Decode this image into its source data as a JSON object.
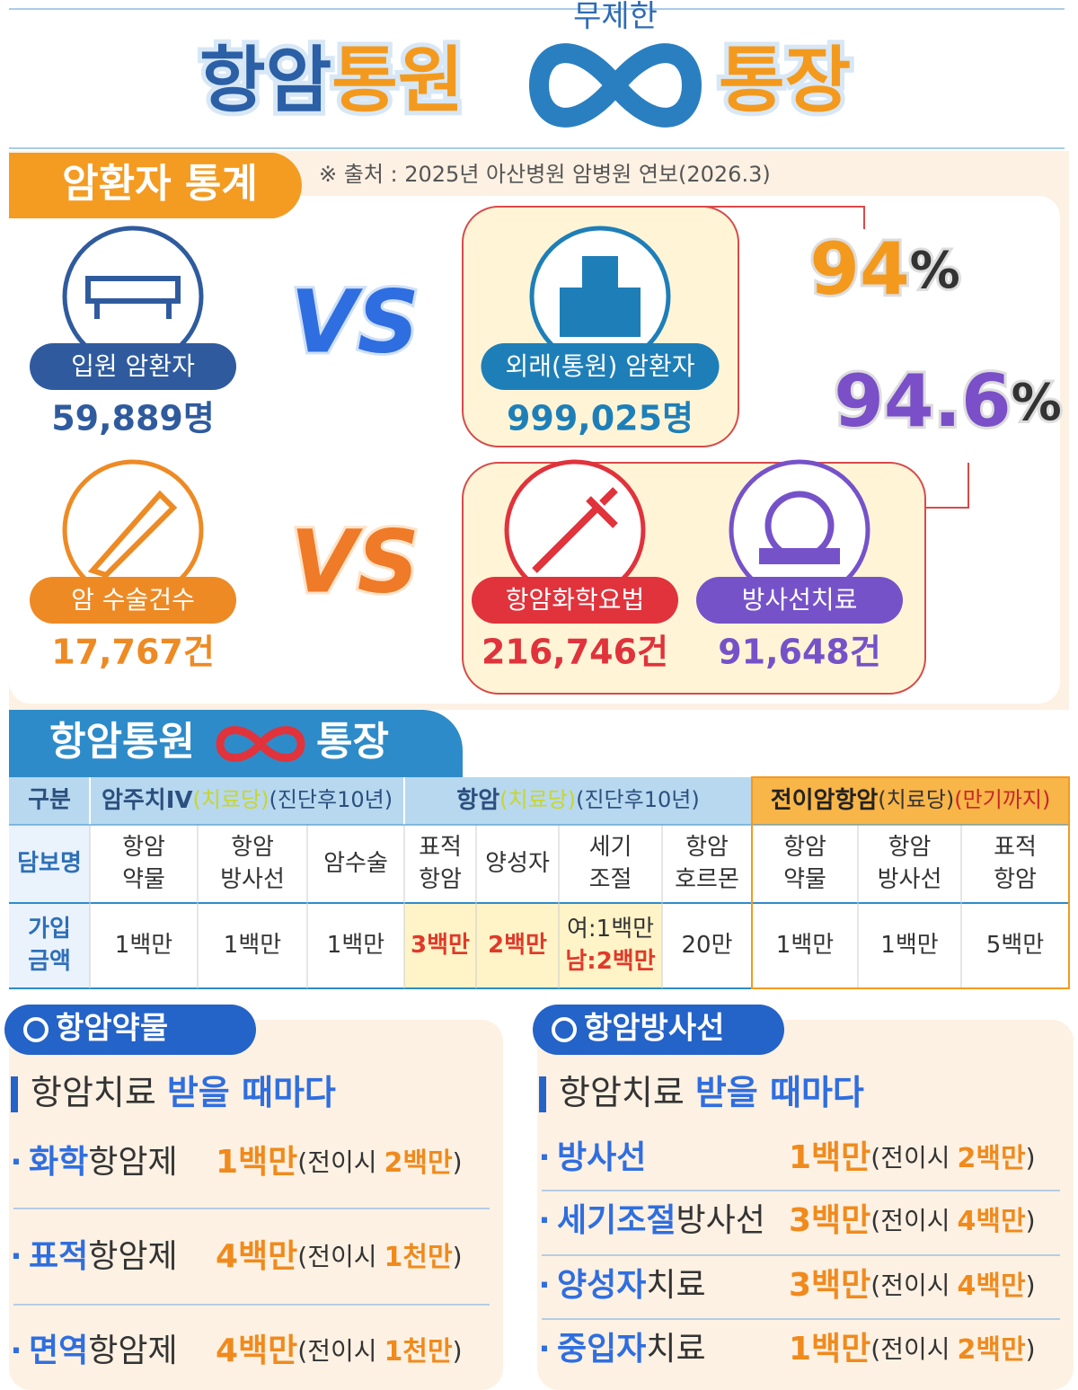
{
  "header": {
    "subtitle": "무제한",
    "title": {
      "part1": "항암",
      "part2": "통원",
      "part3": "통장"
    }
  },
  "stats": {
    "label": "암환자 통계",
    "source": "※ 출처 : 2025년 아산병원 암병원 연보(2026.3)",
    "vs": [
      "VS",
      "VS"
    ],
    "inpatient": {
      "label": "입원 암환자",
      "value": "59,889명"
    },
    "outpatient": {
      "label": "외래(통원) 암환자",
      "value": "999,025명"
    },
    "outpatient_share": {
      "number": "94",
      "unit": "%"
    },
    "surgery": {
      "label": "암 수술건수",
      "value": "17,767건"
    },
    "chemotherapy": {
      "label": "항암화학요법",
      "value": "216,746건"
    },
    "radiation": {
      "label": "방사선치료",
      "value": "91,648건"
    },
    "treatment_share": {
      "number": "94.6",
      "unit": "%"
    }
  },
  "table": {
    "title": {
      "part1": "항암통원",
      "part2": "통장"
    },
    "header": {
      "label": "구분",
      "groups": [
        {
          "name": "암주치IV",
          "per": "(치료당)",
          "term": "(진단후10년)"
        },
        {
          "name": "항암",
          "per": "(치료당)",
          "term": "(진단후10년)"
        },
        {
          "name": "전이암항암",
          "per": "(치료당)",
          "term": "(만기까지)"
        }
      ]
    },
    "rows": [
      {
        "label": [
          "담보명"
        ],
        "cells": [
          [
            "항암",
            "약물"
          ],
          [
            "항암",
            "방사선"
          ],
          [
            "암수술"
          ],
          [
            "표적",
            "항암"
          ],
          [
            "양성자"
          ],
          [
            "세기",
            "조절"
          ],
          [
            "항암",
            "호르몬"
          ],
          [
            "항암",
            "약물"
          ],
          [
            "항암",
            "방사선"
          ],
          [
            "표적",
            "항암"
          ]
        ]
      },
      {
        "label": [
          "가입",
          "금액"
        ],
        "cells": [
          [
            "1백만"
          ],
          [
            "1백만"
          ],
          [
            "1백만"
          ],
          [
            "3백만"
          ],
          [
            "2백만"
          ],
          [
            "여:1백만",
            "남:2백만"
          ],
          [
            "20만"
          ],
          [
            "1백만"
          ],
          [
            "1백만"
          ],
          [
            "5백만"
          ]
        ]
      }
    ]
  },
  "panels": [
    {
      "tab": "항암약물",
      "heading": {
        "plain": "항암치료",
        "emphasis": "받을 때마다"
      },
      "bullet": "·",
      "items": [
        {
          "highlight": "화학",
          "name": "항암제",
          "amount": "1백만",
          "note": {
            "open": "(전이시",
            "amount": "2백만",
            "close": ")"
          }
        },
        {
          "highlight": "표적",
          "name": "항암제",
          "amount": "4백만",
          "note": {
            "open": "(전이시",
            "amount": "1천만",
            "close": ")"
          }
        },
        {
          "highlight": "면역",
          "name": "항암제",
          "amount": "4백만",
          "note": {
            "open": "(전이시",
            "amount": "1천만",
            "close": ")"
          }
        }
      ]
    },
    {
      "tab": "항암방사선",
      "heading": {
        "plain": "항암치료",
        "emphasis": "받을 때마다"
      },
      "bullet": "·",
      "items": [
        {
          "highlight": "방사선",
          "amount": "1백만",
          "note": {
            "open": "(전이시",
            "amount": "2백만",
            "close": ")"
          }
        },
        {
          "highlight": "세기조절",
          "name": "방사선",
          "amount": "3백만",
          "note": {
            "open": "(전이시",
            "amount": "4백만",
            "close": ")"
          }
        },
        {
          "highlight": "양성자",
          "name": "치료",
          "amount": "3백만",
          "note": {
            "open": "(전이시",
            "amount": "4백만",
            "close": ")"
          }
        },
        {
          "highlight": "중입자",
          "name": "치료",
          "amount": "1백만",
          "note": {
            "open": "(전이시",
            "amount": "2백만",
            "close": ")"
          }
        }
      ]
    }
  ]
}
